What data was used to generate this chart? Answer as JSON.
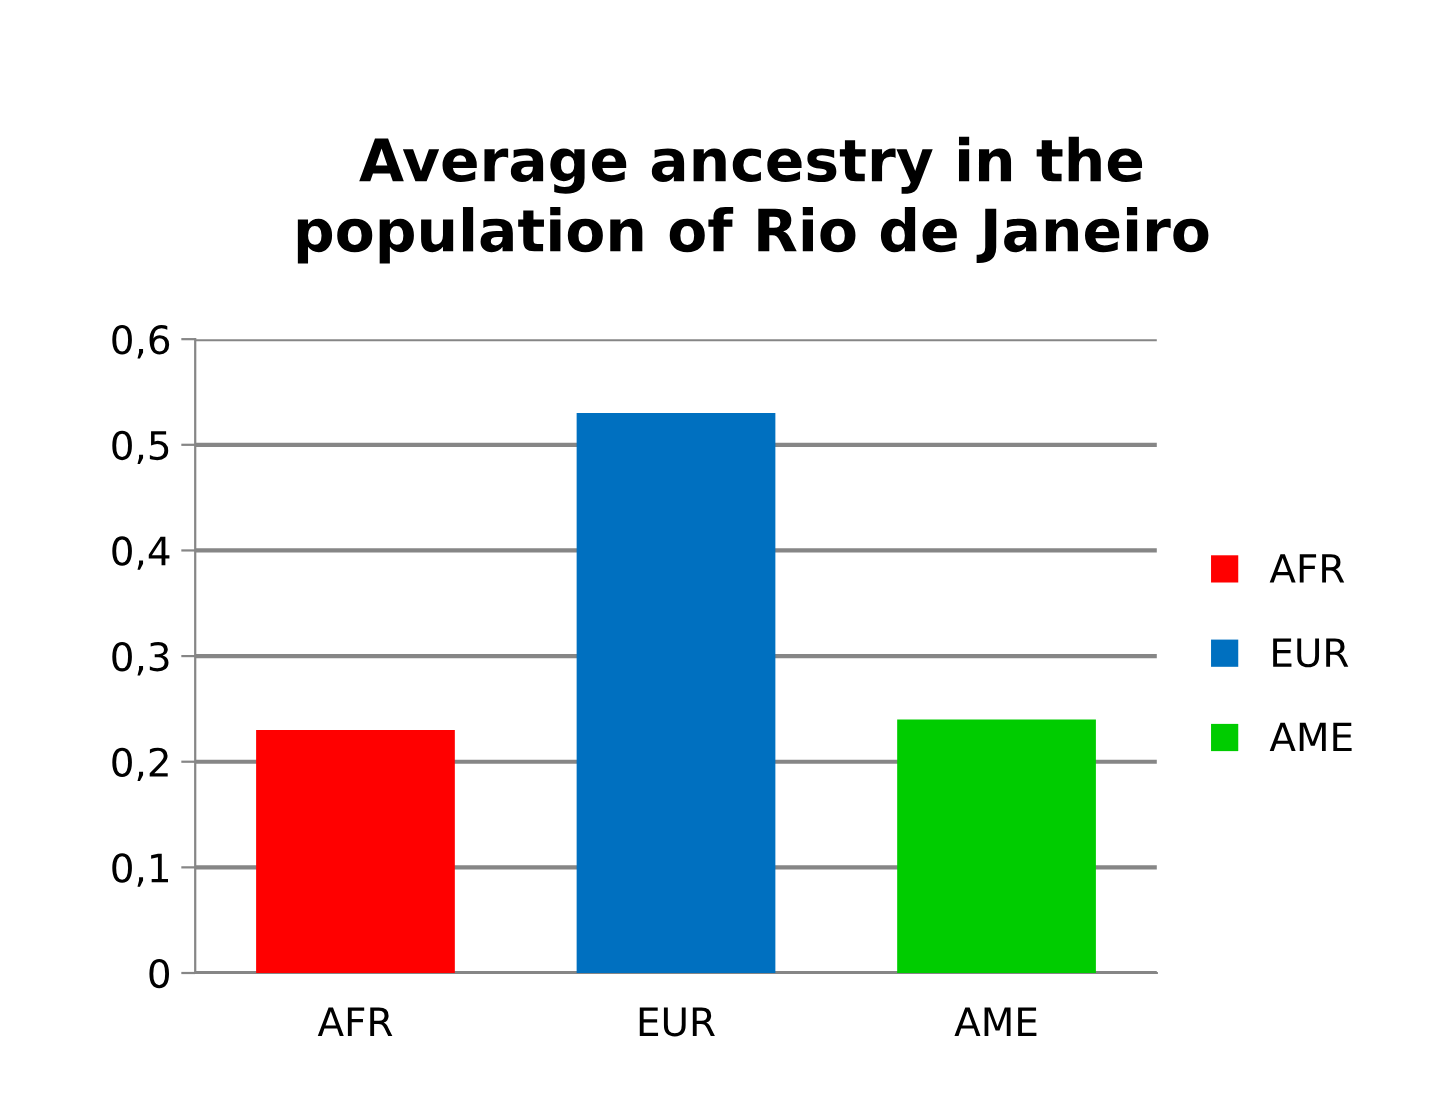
{
  "chart_data": {
    "type": "bar",
    "title": "Average ancestry in the\npopulation of Rio de Janeiro",
    "categories": [
      "AFR",
      "EUR",
      "AME"
    ],
    "series": [
      {
        "name": "AFR",
        "color": "#ff0000",
        "values": [
          0.23,
          null,
          null
        ]
      },
      {
        "name": "EUR",
        "color": "#0070c0",
        "values": [
          null,
          0.53,
          null
        ]
      },
      {
        "name": "AME",
        "color": "#00cc00",
        "values": [
          null,
          null,
          0.24
        ]
      }
    ],
    "ylim": [
      0,
      0.6
    ],
    "yticks": [
      0,
      {
        "value": 0.1,
        "label": "0,1"
      },
      {
        "value": 0.2,
        "label": "0,2"
      },
      {
        "value": 0.3,
        "label": "0,3"
      },
      {
        "value": 0.4,
        "label": "0,4"
      },
      {
        "value": 0.5,
        "label": "0,5"
      },
      {
        "value": 0.6,
        "label": "0,6"
      }
    ],
    "grid": "y",
    "legend": "right"
  }
}
